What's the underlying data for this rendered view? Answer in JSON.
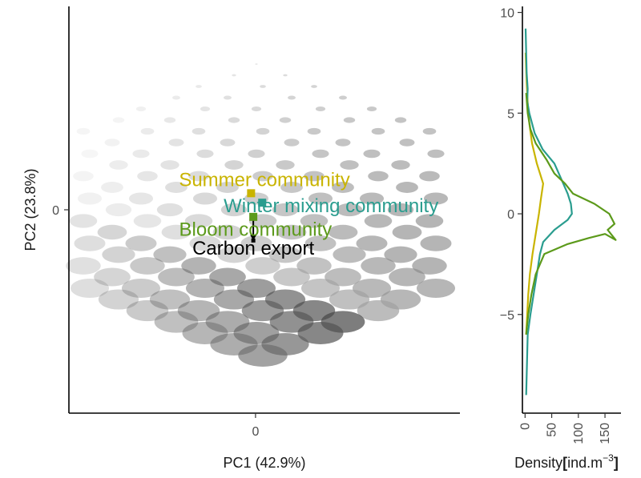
{
  "chart_data": [
    {
      "type": "scatter",
      "xlabel": "PC1 (42.9%)",
      "ylabel": "PC2 (23.8%)",
      "xlim": [
        -4.2,
        4.6
      ],
      "ylim": [
        -4.3,
        4.3
      ],
      "x_ticks": [
        0
      ],
      "y_ticks": [
        0
      ],
      "grid": false,
      "points": [
        {
          "name": "Summer community",
          "x": -0.1,
          "y": 0.35,
          "color": "#C9B400"
        },
        {
          "name": "Winter mixing community",
          "x": 0.15,
          "y": 0.15,
          "color": "#2A9D8F"
        },
        {
          "name": "Bloom community",
          "x": -0.05,
          "y": -0.15,
          "color": "#5C9A1B"
        },
        {
          "name": "Carbon export",
          "x": -0.05,
          "y": -0.65,
          "color": "#000000"
        }
      ],
      "annotations": [
        {
          "text": "Summer community",
          "x": 0.2,
          "y": 0.5,
          "color": "#C9B400"
        },
        {
          "text": "Winter mixing community",
          "x": 1.7,
          "y": -0.05,
          "color": "#2A9D8F"
        },
        {
          "text": "Bloom community",
          "x": 0.0,
          "y": -0.55,
          "color": "#5C9A1B"
        },
        {
          "text": "Carbon export",
          "x": -0.05,
          "y": -0.95,
          "color": "#000000"
        }
      ],
      "arrow": {
        "from": "Bloom community",
        "to": "Carbon export"
      },
      "background": "grayscale plankton image grid"
    },
    {
      "type": "line",
      "xlabel_prefix": "Density",
      "xlabel_unit": "ind.m",
      "xlabel_sup": "−3",
      "xlim": [
        -5,
        180
      ],
      "ylim": [
        -9.9,
        10.3
      ],
      "x_ticks": [
        0,
        50,
        100,
        150
      ],
      "y_ticks": [
        -5,
        0,
        5,
        10
      ],
      "series": [
        {
          "color": "#C9B400",
          "points": [
            [
              2,
              -6
            ],
            [
              4,
              -5
            ],
            [
              6,
              -4
            ],
            [
              9,
              -3
            ],
            [
              14,
              -2
            ],
            [
              20,
              -1
            ],
            [
              26,
              0
            ],
            [
              30,
              0.8
            ],
            [
              34,
              1.5
            ],
            [
              22,
              2.5
            ],
            [
              13,
              3.5
            ],
            [
              8,
              4.5
            ],
            [
              5,
              5.5
            ],
            [
              3,
              6.5
            ],
            [
              1,
              8
            ]
          ]
        },
        {
          "color": "#2A9D8F",
          "points": [
            [
              2,
              -9
            ],
            [
              5,
              -6
            ],
            [
              10,
              -5
            ],
            [
              16,
              -4
            ],
            [
              22,
              -3
            ],
            [
              28,
              -2
            ],
            [
              34,
              -1.4
            ],
            [
              55,
              -0.8
            ],
            [
              80,
              -0.3
            ],
            [
              88,
              0
            ],
            [
              86,
              0.5
            ],
            [
              80,
              1
            ],
            [
              70,
              1.6
            ],
            [
              55,
              2.5
            ],
            [
              33,
              3.2
            ],
            [
              18,
              4
            ],
            [
              8,
              5
            ],
            [
              4,
              5.6
            ],
            [
              5,
              6.2
            ],
            [
              3,
              7
            ],
            [
              1,
              9.2
            ]
          ]
        },
        {
          "color": "#5C9A1B",
          "points": [
            [
              2,
              -6
            ],
            [
              6,
              -5
            ],
            [
              12,
              -4
            ],
            [
              20,
              -3
            ],
            [
              36,
              -2
            ],
            [
              80,
              -1.5
            ],
            [
              120,
              -1.2
            ],
            [
              150,
              -1
            ],
            [
              170,
              -1.3
            ],
            [
              155,
              -0.8
            ],
            [
              168,
              -0.5
            ],
            [
              158,
              0
            ],
            [
              130,
              0.5
            ],
            [
              90,
              1
            ],
            [
              75,
              1.5
            ],
            [
              55,
              2
            ],
            [
              40,
              2.7
            ],
            [
              20,
              3.5
            ],
            [
              10,
              4.2
            ],
            [
              5,
              5
            ],
            [
              2,
              6
            ]
          ]
        }
      ]
    }
  ]
}
